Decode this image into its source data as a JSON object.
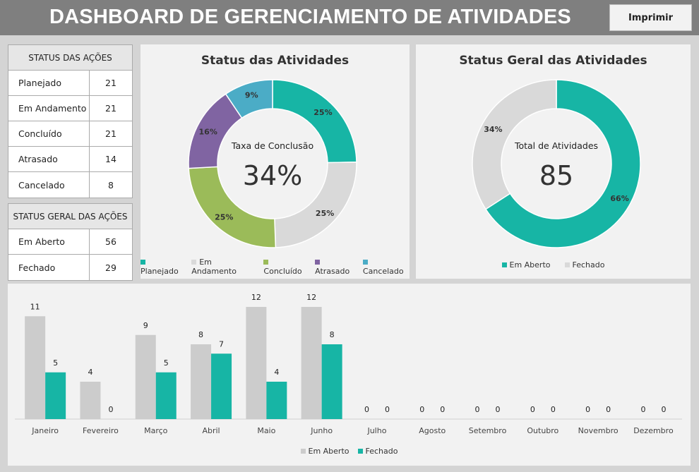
{
  "header": {
    "title": "DASHBOARD DE GERENCIAMENTO DE ATIVIDADES",
    "print_label": "Imprimir"
  },
  "status_table": {
    "title": "STATUS DAS AÇÕES",
    "rows": [
      {
        "label": "Planejado",
        "value": "21"
      },
      {
        "label": "Em Andamento",
        "value": "21"
      },
      {
        "label": "Concluído",
        "value": "21"
      },
      {
        "label": "Atrasado",
        "value": "14"
      },
      {
        "label": "Cancelado",
        "value": "8"
      }
    ]
  },
  "geral_table": {
    "title": "STATUS GERAL DAS AÇÕES",
    "rows": [
      {
        "label": "Em Aberto",
        "value": "56"
      },
      {
        "label": "Fechado",
        "value": "29"
      }
    ]
  },
  "chart_data": [
    {
      "type": "pie",
      "title": "Status das Atividades",
      "center_label": "Taxa de Conclusão",
      "center_value": "34%",
      "categories": [
        "Planejado",
        "Em Andamento",
        "Concluído",
        "Atrasado",
        "Cancelado"
      ],
      "values": [
        21,
        21,
        21,
        14,
        8
      ],
      "labels": [
        "25%",
        "25%",
        "25%",
        "16%",
        "9%"
      ],
      "colors": [
        "#17b5a5",
        "#d9d9d9",
        "#9bbb59",
        "#8064a2",
        "#4bacc6"
      ]
    },
    {
      "type": "pie",
      "title": "Status Geral das Atividades",
      "center_label": "Total de Atividades",
      "center_value": "85",
      "categories": [
        "Em Aberto",
        "Fechado"
      ],
      "values": [
        56,
        29
      ],
      "labels": [
        "66%",
        "34%"
      ],
      "colors": [
        "#17b5a5",
        "#d9d9d9"
      ]
    },
    {
      "type": "bar",
      "categories": [
        "Janeiro",
        "Fevereiro",
        "Março",
        "Abril",
        "Maio",
        "Junho",
        "Julho",
        "Agosto",
        "Setembro",
        "Outubro",
        "Novembro",
        "Dezembro"
      ],
      "series": [
        {
          "name": "Em Aberto",
          "color": "#cccccc",
          "values": [
            11,
            4,
            9,
            8,
            12,
            12,
            0,
            0,
            0,
            0,
            0,
            0
          ]
        },
        {
          "name": "Fechado",
          "color": "#17b5a5",
          "values": [
            5,
            0,
            5,
            7,
            4,
            8,
            0,
            0,
            0,
            0,
            0,
            0
          ]
        }
      ],
      "ylim": [
        0,
        12
      ],
      "legend": "bottom"
    }
  ]
}
